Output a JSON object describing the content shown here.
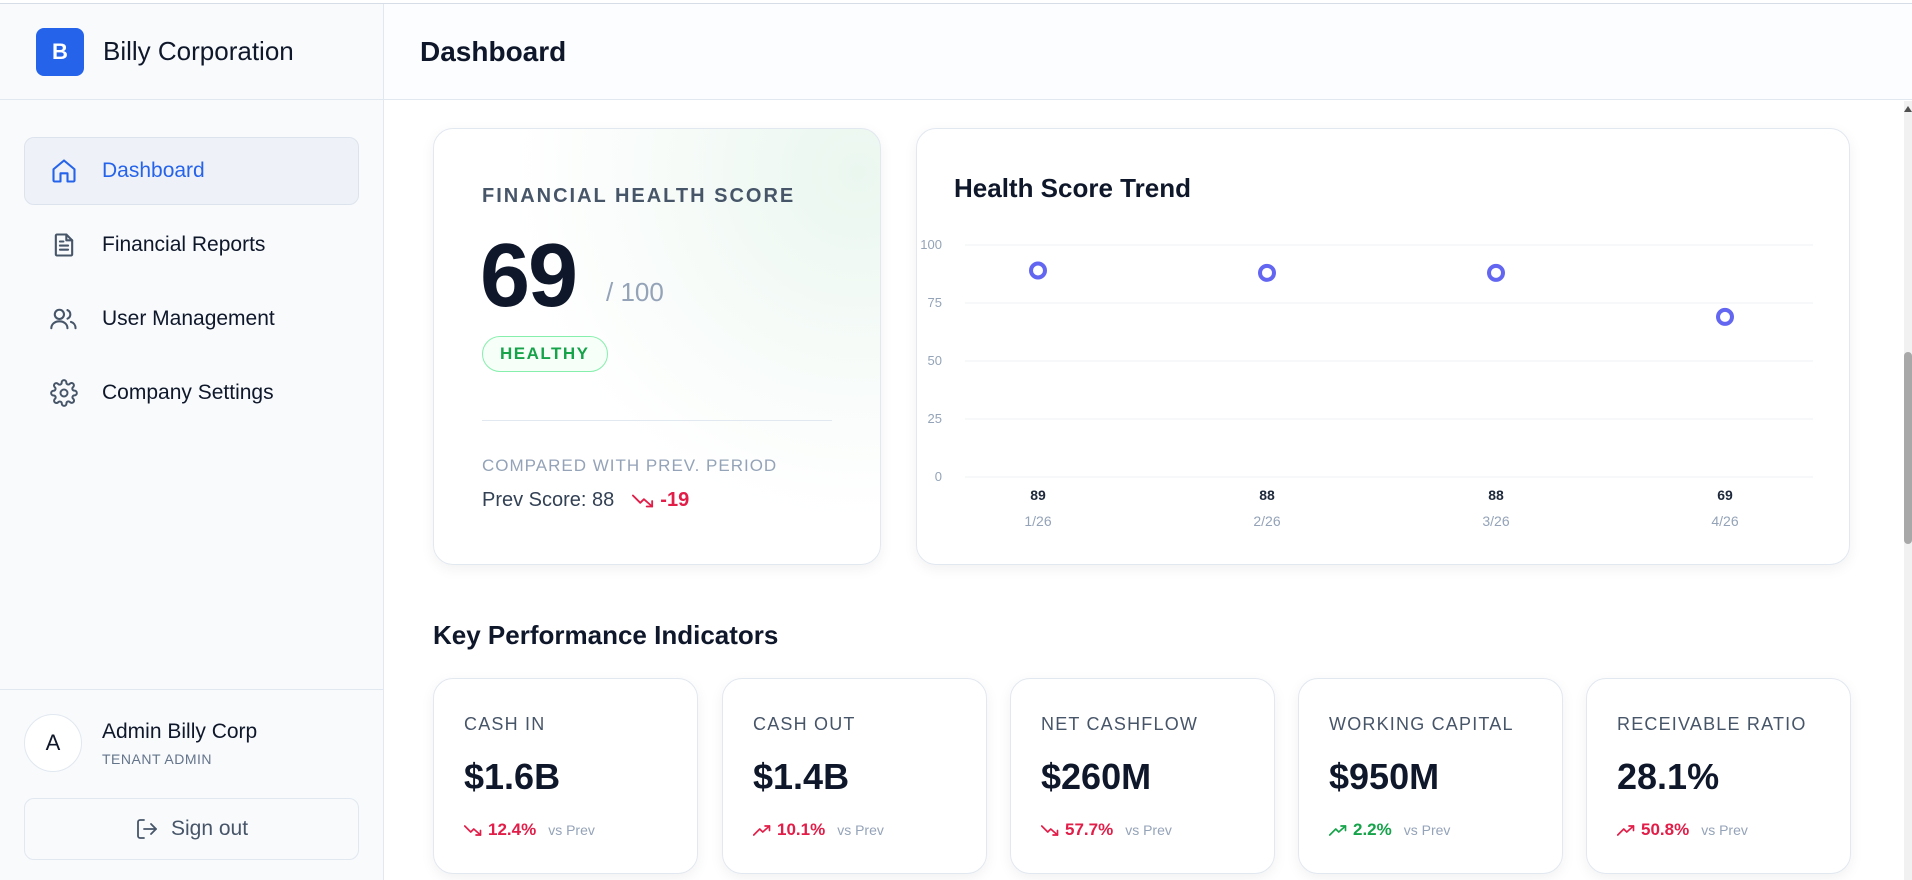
{
  "brand": {
    "logo_letter": "B",
    "name": "Billy Corporation",
    "color": "#2563eb"
  },
  "header": {
    "title": "Dashboard"
  },
  "sidebar": {
    "items": [
      {
        "label": "Dashboard",
        "icon": "home-icon",
        "active": true
      },
      {
        "label": "Financial Reports",
        "icon": "document-icon",
        "active": false
      },
      {
        "label": "User Management",
        "icon": "users-icon",
        "active": false
      },
      {
        "label": "Company Settings",
        "icon": "gear-icon",
        "active": false
      }
    ],
    "user": {
      "initial": "A",
      "name": "Admin Billy Corp",
      "role": "TENANT ADMIN"
    },
    "signout_label": "Sign out"
  },
  "health": {
    "title": "FINANCIAL HEALTH SCORE",
    "score": "69",
    "max": "/ 100",
    "badge": "HEALTHY",
    "compare_label": "COMPARED WITH PREV. PERIOD",
    "prev_score": "Prev Score: 88",
    "delta": "-19"
  },
  "trend": {
    "title": "Health Score Trend",
    "chart_data": {
      "type": "scatter",
      "categories": [
        "1/26",
        "2/26",
        "3/26",
        "4/26"
      ],
      "values": [
        89,
        88,
        88,
        69
      ],
      "value_labels": [
        "89",
        "88",
        "88",
        "69"
      ],
      "ylim": [
        0,
        100
      ],
      "yticks": [
        "0",
        "25",
        "50",
        "75",
        "100"
      ],
      "grid": true,
      "color": "#6366f1"
    }
  },
  "kpi": {
    "title": "Key Performance Indicators",
    "vs_label": "vs Prev",
    "cards": [
      {
        "label": "CASH IN",
        "value": "$1.6B",
        "change": "12.4%",
        "direction": "down",
        "tone": "negative"
      },
      {
        "label": "CASH OUT",
        "value": "$1.4B",
        "change": "10.1%",
        "direction": "up",
        "tone": "negative"
      },
      {
        "label": "NET CASHFLOW",
        "value": "$260M",
        "change": "57.7%",
        "direction": "down",
        "tone": "negative"
      },
      {
        "label": "WORKING CAPITAL",
        "value": "$950M",
        "change": "2.2%",
        "direction": "up",
        "tone": "positive"
      },
      {
        "label": "RECEIVABLE RATIO",
        "value": "28.1%",
        "change": "50.8%",
        "direction": "up",
        "tone": "negative"
      }
    ]
  },
  "colors": {
    "negative": "#e11d48",
    "positive": "#16a34a",
    "accent": "#2563eb"
  }
}
